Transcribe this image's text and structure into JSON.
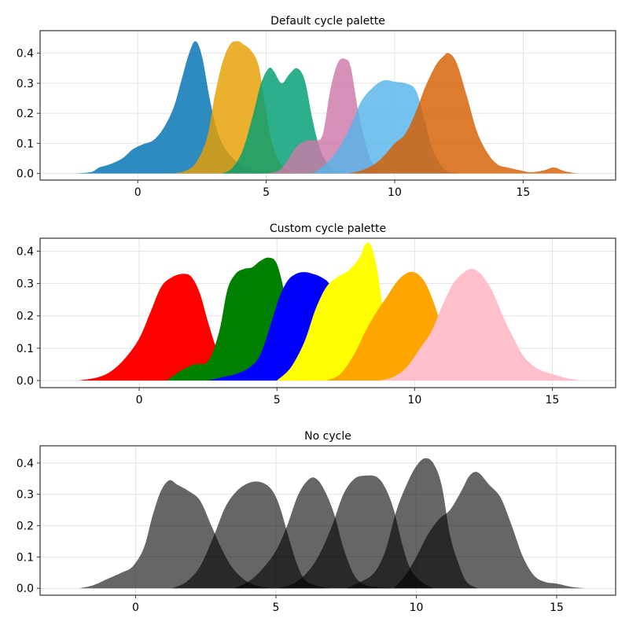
{
  "chart_data": [
    {
      "type": "area",
      "title": "Default cycle palette",
      "xlabel": "",
      "ylabel": "",
      "xlim": [
        -3.8,
        18.6
      ],
      "ylim": [
        -0.022,
        0.475
      ],
      "xticks": [
        0,
        5,
        10,
        15
      ],
      "yticks": [
        0.0,
        0.1,
        0.2,
        0.3,
        0.4
      ],
      "xtick_labels": [
        "0",
        "5",
        "10",
        "15"
      ],
      "ytick_labels": [
        "0.0",
        "0.1",
        "0.2",
        "0.3",
        "0.4"
      ],
      "grid": true,
      "fill_opacity": 0.82,
      "series": [
        {
          "color": "#0072B2",
          "x": [
            -2.4,
            -1.8,
            -1.5,
            -1.1,
            -0.6,
            -0.2,
            0.2,
            0.6,
            1.0,
            1.4,
            1.7,
            2.0,
            2.25,
            2.5,
            2.8,
            3.1,
            3.5,
            4.0,
            4.6,
            5.2,
            5.6
          ],
          "y": [
            0,
            0.005,
            0.02,
            0.03,
            0.05,
            0.08,
            0.097,
            0.11,
            0.15,
            0.22,
            0.31,
            0.4,
            0.44,
            0.39,
            0.25,
            0.14,
            0.07,
            0.03,
            0.01,
            0.002,
            0
          ]
        },
        {
          "color": "#E69F00",
          "x": [
            1.4,
            1.9,
            2.3,
            2.7,
            3.0,
            3.3,
            3.6,
            3.9,
            4.1,
            4.4,
            4.7,
            4.95,
            5.2,
            5.5,
            5.8,
            6.1
          ],
          "y": [
            0,
            0.01,
            0.04,
            0.12,
            0.26,
            0.37,
            0.43,
            0.44,
            0.43,
            0.41,
            0.36,
            0.23,
            0.11,
            0.04,
            0.01,
            0
          ]
        },
        {
          "color": "#009E73",
          "x": [
            3.3,
            3.7,
            4.1,
            4.5,
            4.8,
            5.1,
            5.3,
            5.6,
            5.9,
            6.2,
            6.5,
            6.8,
            7.1,
            7.5,
            8.0
          ],
          "y": [
            0,
            0.02,
            0.08,
            0.2,
            0.3,
            0.35,
            0.34,
            0.3,
            0.33,
            0.35,
            0.31,
            0.18,
            0.08,
            0.02,
            0
          ]
        },
        {
          "color": "#CC79A7",
          "x": [
            5.0,
            5.5,
            5.8,
            6.2,
            6.6,
            6.9,
            7.2,
            7.5,
            7.8,
            8.1,
            8.3,
            8.6,
            9.0,
            9.4,
            9.8
          ],
          "y": [
            0,
            0.01,
            0.04,
            0.09,
            0.11,
            0.11,
            0.13,
            0.28,
            0.37,
            0.38,
            0.35,
            0.2,
            0.06,
            0.01,
            0
          ]
        },
        {
          "color": "#56B4E9",
          "x": [
            6.8,
            7.3,
            7.8,
            8.3,
            8.7,
            9.2,
            9.6,
            10.0,
            10.4,
            10.8,
            11.1,
            11.4,
            11.7,
            12.0,
            12.4
          ],
          "y": [
            0,
            0.03,
            0.08,
            0.16,
            0.24,
            0.29,
            0.31,
            0.305,
            0.3,
            0.28,
            0.2,
            0.1,
            0.04,
            0.01,
            0
          ]
        },
        {
          "color": "#D55E00",
          "x": [
            8.2,
            8.7,
            9.2,
            9.6,
            10.0,
            10.4,
            10.8,
            11.2,
            11.6,
            11.9,
            12.1,
            12.4,
            12.8,
            13.2,
            13.6,
            14.0,
            14.4,
            14.9,
            15.3,
            15.8,
            16.2,
            16.6,
            17.1
          ],
          "y": [
            0,
            0.01,
            0.03,
            0.06,
            0.1,
            0.13,
            0.2,
            0.29,
            0.36,
            0.39,
            0.4,
            0.37,
            0.26,
            0.14,
            0.07,
            0.03,
            0.02,
            0.01,
            0.004,
            0.01,
            0.02,
            0.008,
            0
          ]
        }
      ]
    },
    {
      "type": "area",
      "title": "Custom cycle palette",
      "xlabel": "",
      "ylabel": "",
      "xlim": [
        -3.6,
        17.3
      ],
      "ylim": [
        -0.022,
        0.44
      ],
      "xticks": [
        0,
        5,
        10,
        15
      ],
      "yticks": [
        0.0,
        0.1,
        0.2,
        0.3,
        0.4
      ],
      "xtick_labels": [
        "0",
        "5",
        "10",
        "15"
      ],
      "ytick_labels": [
        "0.0",
        "0.1",
        "0.2",
        "0.3",
        "0.4"
      ],
      "grid": true,
      "fill_opacity": 1,
      "series": [
        {
          "color": "#ff0000",
          "x": [
            -2.2,
            -1.5,
            -1.0,
            -0.5,
            0.0,
            0.4,
            0.8,
            1.2,
            1.6,
            1.9,
            2.2,
            2.5,
            2.8,
            3.1,
            3.5,
            4.0
          ],
          "y": [
            0,
            0.01,
            0.03,
            0.07,
            0.13,
            0.21,
            0.29,
            0.32,
            0.33,
            0.32,
            0.27,
            0.18,
            0.1,
            0.05,
            0.015,
            0
          ]
        },
        {
          "color": "#008000",
          "x": [
            1.0,
            1.5,
            2.0,
            2.5,
            2.9,
            3.2,
            3.5,
            3.8,
            4.1,
            4.4,
            4.7,
            5.0,
            5.3,
            5.6,
            5.9,
            6.3
          ],
          "y": [
            0,
            0.03,
            0.05,
            0.06,
            0.15,
            0.28,
            0.33,
            0.345,
            0.35,
            0.37,
            0.38,
            0.36,
            0.26,
            0.12,
            0.04,
            0
          ]
        },
        {
          "color": "#0000ff",
          "x": [
            2.5,
            3.0,
            3.5,
            4.0,
            4.4,
            4.8,
            5.1,
            5.4,
            5.7,
            6.0,
            6.3,
            6.6,
            6.9,
            7.2,
            7.5,
            7.8,
            8.2
          ],
          "y": [
            0,
            0.01,
            0.02,
            0.04,
            0.08,
            0.18,
            0.26,
            0.31,
            0.33,
            0.335,
            0.33,
            0.32,
            0.3,
            0.25,
            0.15,
            0.06,
            0
          ]
        },
        {
          "color": "#ffff00",
          "x": [
            5.0,
            5.5,
            6.0,
            6.4,
            6.8,
            7.2,
            7.6,
            8.0,
            8.2,
            8.4,
            8.6,
            8.8,
            9.0,
            9.3,
            9.6
          ],
          "y": [
            0,
            0.04,
            0.12,
            0.22,
            0.29,
            0.32,
            0.34,
            0.38,
            0.42,
            0.42,
            0.36,
            0.25,
            0.12,
            0.04,
            0
          ]
        },
        {
          "color": "#ffa500",
          "x": [
            6.8,
            7.3,
            7.8,
            8.2,
            8.6,
            9.0,
            9.4,
            9.8,
            10.1,
            10.4,
            10.7,
            11.0,
            11.3,
            11.7,
            12.1
          ],
          "y": [
            0,
            0.02,
            0.08,
            0.15,
            0.21,
            0.26,
            0.31,
            0.335,
            0.33,
            0.3,
            0.24,
            0.16,
            0.08,
            0.02,
            0
          ]
        },
        {
          "color": "#ffc0cb",
          "x": [
            8.7,
            9.2,
            9.7,
            10.2,
            10.6,
            11.0,
            11.4,
            11.8,
            12.1,
            12.4,
            12.8,
            13.2,
            13.6,
            14.0,
            14.5,
            15.0,
            15.5,
            16.0
          ],
          "y": [
            0,
            0.01,
            0.04,
            0.1,
            0.15,
            0.23,
            0.3,
            0.335,
            0.345,
            0.33,
            0.28,
            0.2,
            0.13,
            0.07,
            0.035,
            0.02,
            0.008,
            0
          ]
        }
      ]
    },
    {
      "type": "area",
      "title": "No cycle",
      "xlabel": "",
      "ylabel": "",
      "xlim": [
        -3.4,
        17.1
      ],
      "ylim": [
        -0.022,
        0.455
      ],
      "xticks": [
        0,
        5,
        10,
        15
      ],
      "yticks": [
        0.0,
        0.1,
        0.2,
        0.3,
        0.4
      ],
      "xtick_labels": [
        "0",
        "5",
        "10",
        "15"
      ],
      "ytick_labels": [
        "0.0",
        "0.1",
        "0.2",
        "0.3",
        "0.4"
      ],
      "grid": true,
      "fill_opacity": 0.6,
      "series": [
        {
          "color": "#000000",
          "x": [
            -2.0,
            -1.5,
            -1.0,
            -0.5,
            -0.1,
            0.3,
            0.6,
            0.9,
            1.2,
            1.5,
            1.9,
            2.3,
            2.7,
            3.1,
            3.5,
            4.0,
            4.5,
            5.0
          ],
          "y": [
            0,
            0.01,
            0.03,
            0.05,
            0.07,
            0.13,
            0.23,
            0.31,
            0.345,
            0.33,
            0.31,
            0.28,
            0.2,
            0.12,
            0.06,
            0.02,
            0.005,
            0
          ]
        },
        {
          "color": "#000000",
          "x": [
            1.3,
            1.8,
            2.3,
            2.8,
            3.2,
            3.6,
            4.0,
            4.4,
            4.8,
            5.1,
            5.4,
            5.7,
            6.0,
            6.4,
            6.9
          ],
          "y": [
            0,
            0.02,
            0.07,
            0.17,
            0.26,
            0.31,
            0.335,
            0.34,
            0.32,
            0.27,
            0.18,
            0.09,
            0.03,
            0.01,
            0
          ]
        },
        {
          "color": "#000000",
          "x": [
            3.5,
            4.0,
            4.5,
            5.0,
            5.4,
            5.8,
            6.2,
            6.5,
            6.8,
            7.1,
            7.4,
            7.8,
            8.2,
            8.7,
            9.2
          ],
          "y": [
            0,
            0.02,
            0.06,
            0.12,
            0.2,
            0.3,
            0.35,
            0.345,
            0.3,
            0.23,
            0.13,
            0.04,
            0.01,
            0.003,
            0
          ]
        },
        {
          "color": "#000000",
          "x": [
            5.0,
            5.5,
            6.0,
            6.5,
            7.0,
            7.4,
            7.8,
            8.2,
            8.6,
            8.9,
            9.2,
            9.5,
            9.8,
            10.2,
            10.6
          ],
          "y": [
            0,
            0.01,
            0.04,
            0.1,
            0.2,
            0.3,
            0.35,
            0.36,
            0.355,
            0.32,
            0.25,
            0.14,
            0.06,
            0.02,
            0
          ]
        },
        {
          "color": "#000000",
          "x": [
            7.5,
            8.0,
            8.5,
            8.9,
            9.3,
            9.7,
            10.0,
            10.3,
            10.6,
            10.9,
            11.2,
            11.5,
            11.8,
            12.2
          ],
          "y": [
            0,
            0.02,
            0.05,
            0.12,
            0.25,
            0.34,
            0.39,
            0.415,
            0.4,
            0.33,
            0.17,
            0.08,
            0.02,
            0
          ]
        },
        {
          "color": "#000000",
          "x": [
            9.2,
            9.6,
            10.0,
            10.4,
            10.8,
            11.2,
            11.6,
            11.9,
            12.2,
            12.6,
            13.0,
            13.4,
            13.8,
            14.2,
            14.6,
            15.0,
            15.5,
            16.0
          ],
          "y": [
            0,
            0.04,
            0.1,
            0.17,
            0.22,
            0.25,
            0.31,
            0.36,
            0.37,
            0.33,
            0.29,
            0.2,
            0.1,
            0.04,
            0.02,
            0.015,
            0.005,
            0
          ]
        }
      ]
    }
  ]
}
